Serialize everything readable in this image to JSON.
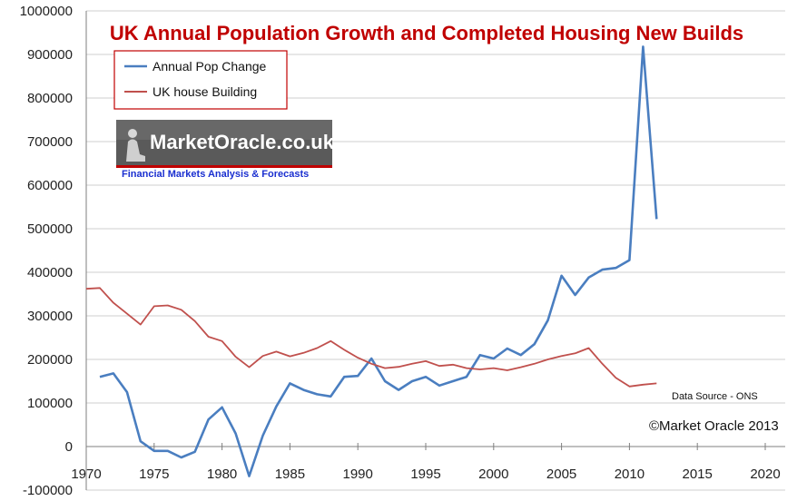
{
  "chart_data": {
    "type": "line",
    "title": "UK  Annual Population Growth and Completed Housing New Builds",
    "xlabel": "",
    "ylabel": "",
    "xlim": [
      1970,
      2022
    ],
    "ylim": [
      -100000,
      1000000
    ],
    "x_ticks": [
      1970,
      1975,
      1980,
      1985,
      1990,
      1995,
      2000,
      2005,
      2010,
      2015,
      2020
    ],
    "y_ticks": [
      -100000,
      0,
      100000,
      200000,
      300000,
      400000,
      500000,
      600000,
      700000,
      800000,
      900000,
      1000000
    ],
    "grid": "horizontal",
    "legend_position": "top-left",
    "series": [
      {
        "name": "Annual Pop Change",
        "color": "#4a7ec0",
        "x": [
          1971,
          1972,
          1973,
          1974,
          1975,
          1976,
          1977,
          1978,
          1979,
          1980,
          1981,
          1982,
          1983,
          1984,
          1985,
          1986,
          1987,
          1988,
          1989,
          1990,
          1991,
          1992,
          1993,
          1994,
          1995,
          1996,
          1997,
          1998,
          1999,
          2000,
          2001,
          2002,
          2003,
          2004,
          2005,
          2006,
          2007,
          2008,
          2009,
          2010,
          2011,
          2012
        ],
        "values": [
          160000,
          168000,
          125000,
          12000,
          -10000,
          -10000,
          -25000,
          -12000,
          62000,
          90000,
          30000,
          -68000,
          25000,
          92000,
          145000,
          130000,
          120000,
          115000,
          160000,
          162000,
          202000,
          150000,
          130000,
          150000,
          160000,
          140000,
          150000,
          160000,
          210000,
          202000,
          225000,
          210000,
          235000,
          290000,
          392000,
          348000,
          388000,
          406000,
          410000,
          428000,
          918000,
          522000
        ]
      },
      {
        "name": "UK house Building",
        "color": "#c0504d",
        "x": [
          1970,
          1971,
          1972,
          1973,
          1974,
          1975,
          1976,
          1977,
          1978,
          1979,
          1980,
          1981,
          1982,
          1983,
          1984,
          1985,
          1986,
          1987,
          1988,
          1989,
          1990,
          1991,
          1992,
          1993,
          1994,
          1995,
          1996,
          1997,
          1998,
          1999,
          2000,
          2001,
          2002,
          2003,
          2004,
          2005,
          2006,
          2007,
          2008,
          2009,
          2010,
          2011,
          2012
        ],
        "values": [
          362000,
          364000,
          330000,
          305000,
          280000,
          322000,
          324000,
          314000,
          288000,
          252000,
          242000,
          206000,
          182000,
          208000,
          218000,
          207000,
          215000,
          226000,
          242000,
          222000,
          204000,
          190000,
          180000,
          183000,
          190000,
          196000,
          185000,
          188000,
          180000,
          177000,
          180000,
          175000,
          182000,
          190000,
          200000,
          208000,
          214000,
          226000,
          190000,
          158000,
          138000,
          142000,
          145000
        ]
      }
    ],
    "annotations": [
      "Data Source - ONS",
      "©Market Oracle 2013"
    ]
  },
  "logo": {
    "brand": "MarketOracle.co.uk",
    "tagline": "Financial Markets Analysis & Forecasts"
  },
  "colors": {
    "pop_series": "#4a7ec0",
    "house_series": "#c0504d",
    "title": "#c00000",
    "grid": "#cfcfcf"
  }
}
